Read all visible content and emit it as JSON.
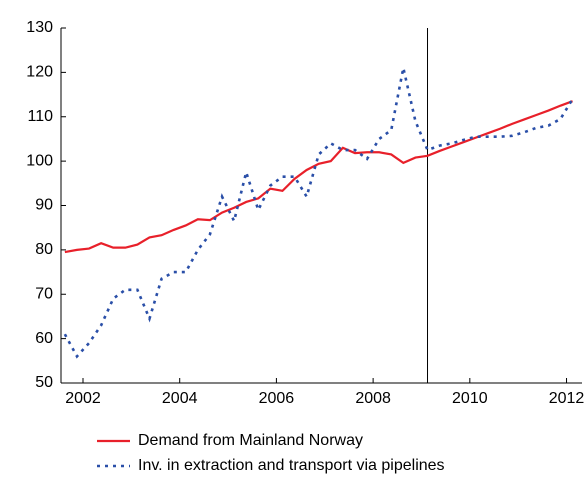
{
  "chart_data": {
    "type": "line",
    "x": [
      2001.625,
      2001.875,
      2002.125,
      2002.375,
      2002.625,
      2002.875,
      2003.125,
      2003.375,
      2003.625,
      2003.875,
      2004.125,
      2004.375,
      2004.625,
      2004.875,
      2005.125,
      2005.375,
      2005.625,
      2005.875,
      2006.125,
      2006.375,
      2006.625,
      2006.875,
      2007.125,
      2007.375,
      2007.625,
      2007.875,
      2008.125,
      2008.375,
      2008.625,
      2008.875,
      2009.125,
      2009.375,
      2009.625,
      2009.875,
      2010.125,
      2010.375,
      2010.625,
      2010.875,
      2011.125,
      2011.375,
      2011.625,
      2011.875,
      2012.125
    ],
    "series": [
      {
        "name": "Demand from Mainland Norway",
        "color": "#e8202a",
        "dash": "solid",
        "values": [
          79.5,
          80,
          80.3,
          81.5,
          80.5,
          80.5,
          81.2,
          82.8,
          83.3,
          84.5,
          85.5,
          86.9,
          86.7,
          88.4,
          89.5,
          90.8,
          91.6,
          93.8,
          93.3,
          96,
          98,
          99.4,
          100,
          103,
          101.8,
          102,
          102,
          101.5,
          99.6,
          100.8,
          101.2,
          102.3,
          103.3,
          104.3,
          105.3,
          106.3,
          107.3,
          108.4,
          109.4,
          110.4,
          111.4,
          112.5,
          113.5
        ]
      },
      {
        "name": "Inv. in extraction and transport via pipelines",
        "color": "#2a4fa8",
        "dash": "dotted",
        "values": [
          61,
          56,
          59,
          63,
          69,
          71,
          71,
          64.5,
          73.5,
          75,
          75,
          80,
          83.5,
          92,
          86.5,
          97.5,
          89,
          94.5,
          96.5,
          96.5,
          92,
          101.5,
          104,
          102.5,
          102.5,
          100.5,
          105,
          107,
          121,
          109,
          102.5,
          103.5,
          104,
          104.8,
          105.5,
          105.5,
          105.5,
          105.7,
          106.5,
          107.5,
          108,
          109.5,
          114
        ]
      }
    ],
    "xlim": [
      2001.545,
      2012.32
    ],
    "xticks": [
      2002,
      2004,
      2006,
      2008,
      2010,
      2012
    ],
    "ylim": [
      50,
      130
    ],
    "yticks": [
      50,
      60,
      70,
      80,
      90,
      100,
      110,
      120,
      130
    ],
    "vline_x": 2009.125,
    "legend": "bottom"
  }
}
